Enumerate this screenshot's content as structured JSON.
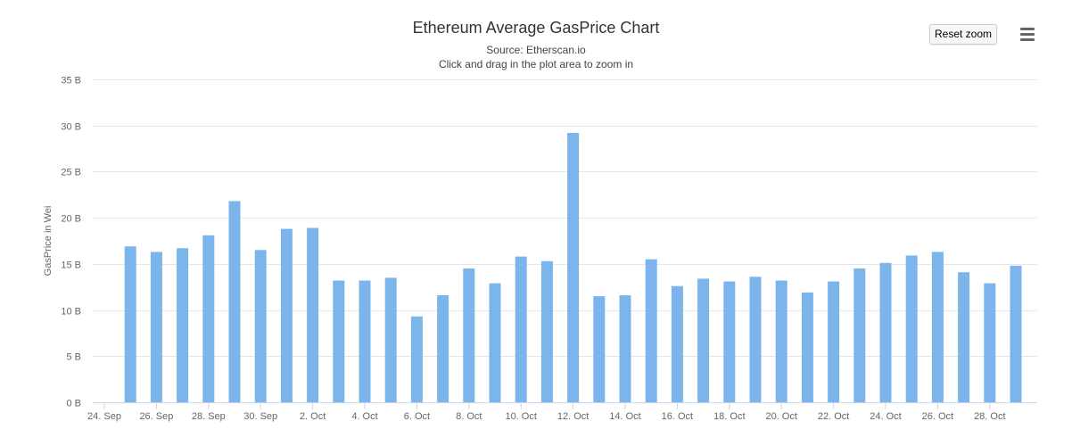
{
  "chart_data": {
    "type": "bar",
    "title": "Ethereum Average GasPrice Chart",
    "subtitle": "Source: Etherscan.io",
    "subtitle2": "Click and drag in the plot area to zoom in",
    "ylabel": "GasPrice in Wei",
    "xlabel": "",
    "ylim": [
      0,
      35
    ],
    "yticks": [
      "0 B",
      "5 B",
      "10 B",
      "15 B",
      "20 B",
      "25 B",
      "30 B",
      "35 B"
    ],
    "x_start": "24. Sep",
    "x_end": "29. Oct",
    "xtick_labels": [
      "24. Sep",
      "26. Sep",
      "28. Sep",
      "30. Sep",
      "2. Oct",
      "4. Oct",
      "6. Oct",
      "8. Oct",
      "10. Oct",
      "12. Oct",
      "14. Oct",
      "16. Oct",
      "18. Oct",
      "20. Oct",
      "22. Oct",
      "24. Oct",
      "26. Oct",
      "28. Oct"
    ],
    "categories": [
      "25. Sep",
      "26. Sep",
      "27. Sep",
      "28. Sep",
      "29. Sep",
      "30. Sep",
      "1. Oct",
      "2. Oct",
      "3. Oct",
      "4. Oct",
      "5. Oct",
      "6. Oct",
      "7. Oct",
      "8. Oct",
      "9. Oct",
      "10. Oct",
      "11. Oct",
      "12. Oct",
      "13. Oct",
      "14. Oct",
      "15. Oct",
      "16. Oct",
      "17. Oct",
      "18. Oct",
      "19. Oct",
      "20. Oct",
      "21. Oct",
      "22. Oct",
      "23. Oct",
      "24. Oct",
      "25. Oct",
      "26. Oct",
      "27. Oct",
      "28. Oct",
      "29. Oct"
    ],
    "values": [
      16.9,
      16.3,
      16.7,
      18.1,
      21.8,
      16.5,
      18.8,
      18.9,
      13.2,
      13.2,
      13.5,
      9.3,
      11.6,
      14.5,
      12.9,
      15.8,
      15.3,
      29.2,
      11.5,
      11.6,
      15.5,
      12.6,
      13.4,
      13.1,
      13.6,
      13.2,
      11.9,
      13.1,
      14.5,
      15.1,
      15.9,
      16.3,
      14.1,
      12.9,
      14.8
    ],
    "unit": "B",
    "grid": true,
    "legend": "none",
    "bar_color": "#7cb5ec"
  },
  "toolbar": {
    "reset_zoom_label": "Reset zoom",
    "menu_icon": "hamburger-menu-icon"
  }
}
